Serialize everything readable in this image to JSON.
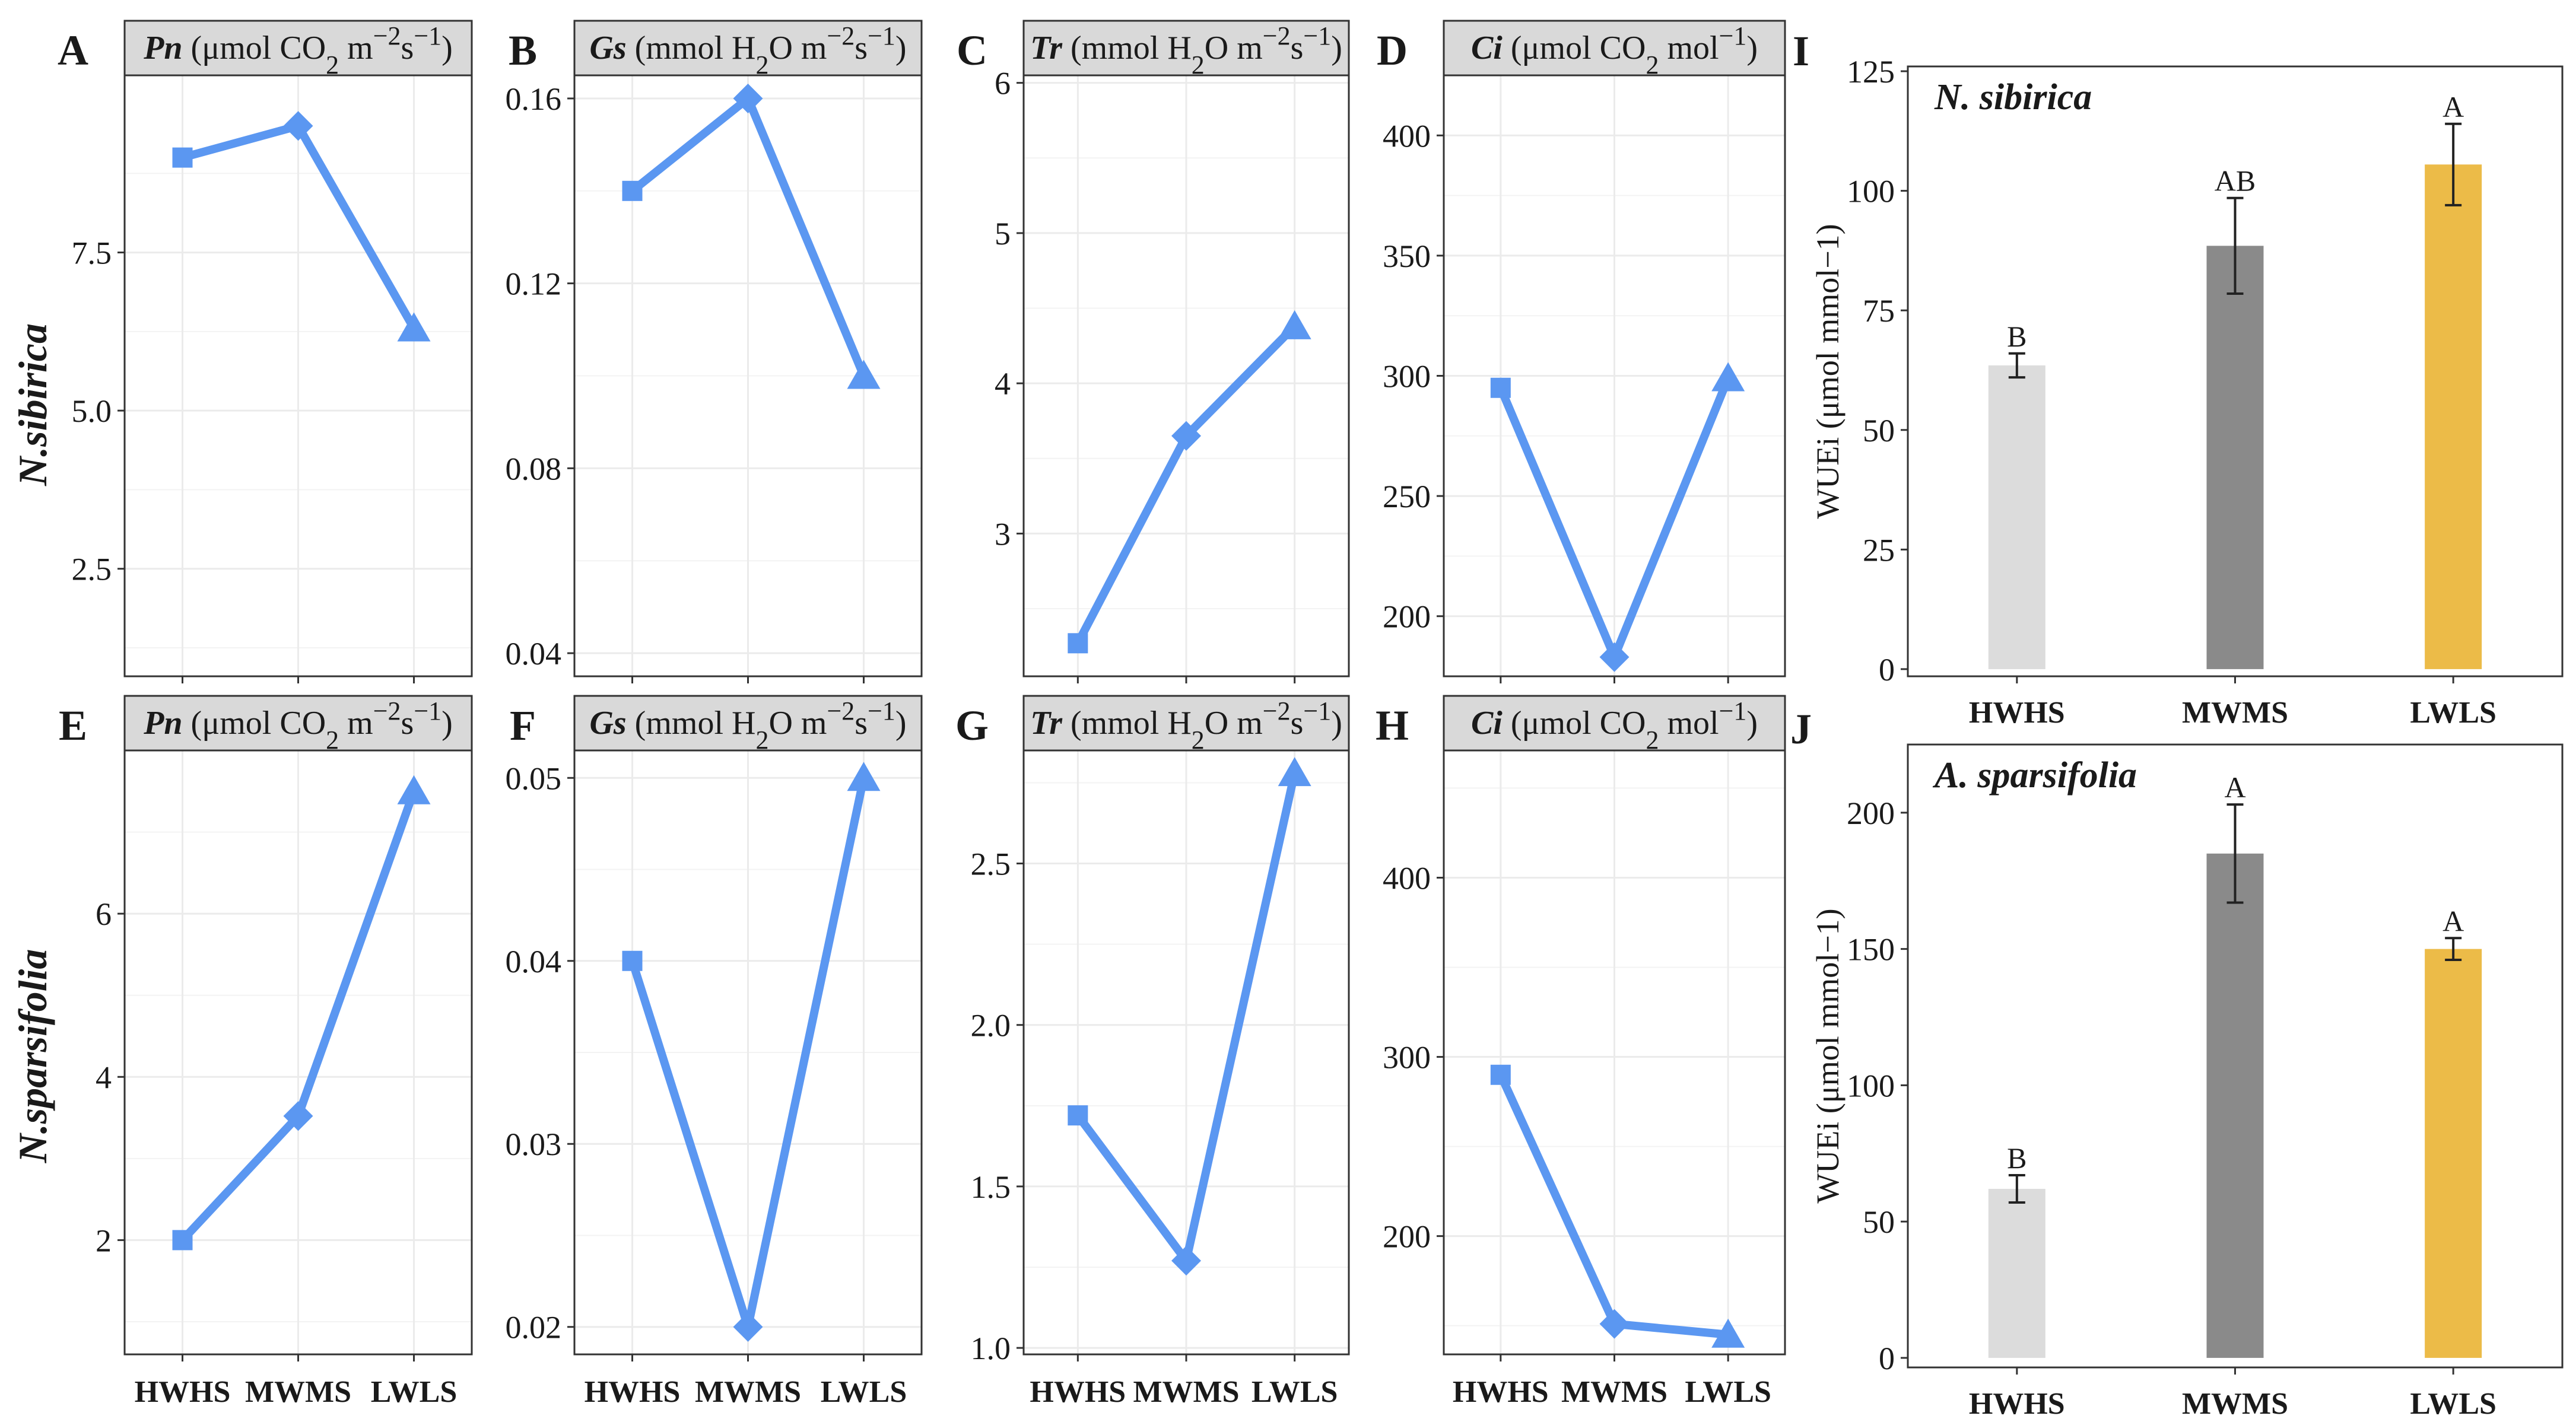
{
  "figure": {
    "row_labels": [
      "N.sibirica",
      "N.sparsifolia"
    ],
    "category_labels": [
      "HWHS",
      "MWMS",
      "LWLS"
    ]
  },
  "colors": {
    "line": "#5b97f1",
    "strip_bg": "#d9d9d9",
    "grid": "#ebebeb",
    "bar_HWHS": "#dcdcdc",
    "bar_MWMS": "#8a8a8a",
    "bar_LWLS": "#ecbb48"
  },
  "chart_data": [
    {
      "id": "A",
      "type": "line",
      "panel_label": "A",
      "strip": {
        "var": "Pn",
        "text": "(μmol CO",
        "sub": "2",
        "text2": " m",
        "sup": "−2",
        "text3": "s",
        "sup2": "−1",
        "text4": ")"
      },
      "categories": [
        "HWHS",
        "MWMS",
        "LWLS"
      ],
      "values": [
        9.0,
        9.5,
        6.3
      ],
      "markers": [
        "square",
        "diamond",
        "triangle"
      ],
      "ylim": [
        0.8,
        10.3
      ],
      "yticks": [
        2.5,
        5.0,
        7.5
      ],
      "ytick_labels": [
        "2.5",
        "5.0",
        "7.5"
      ],
      "show_x_labels": false
    },
    {
      "id": "B",
      "type": "line",
      "panel_label": "B",
      "strip": {
        "var": "Gs",
        "text": "(mmol H",
        "sub": "2",
        "text2": "O m",
        "sup": "−2",
        "text3": "s",
        "sup2": "−1",
        "text4": ")"
      },
      "categories": [
        "HWHS",
        "MWMS",
        "LWLS"
      ],
      "values": [
        0.14,
        0.16,
        0.1
      ],
      "markers": [
        "square",
        "diamond",
        "triangle"
      ],
      "ylim": [
        0.035,
        0.165
      ],
      "yticks": [
        0.04,
        0.08,
        0.12,
        0.16
      ],
      "ytick_labels": [
        "0.04",
        "0.08",
        "0.12",
        "0.16"
      ],
      "show_x_labels": false
    },
    {
      "id": "C",
      "type": "line",
      "panel_label": "C",
      "strip": {
        "var": "Tr",
        "text": "(mmol H",
        "sub": "2",
        "text2": "O m",
        "sup": "−2",
        "text3": "s",
        "sup2": "−1",
        "text4": ")"
      },
      "categories": [
        "HWHS",
        "MWMS",
        "LWLS"
      ],
      "values": [
        2.27,
        3.65,
        4.38
      ],
      "markers": [
        "square",
        "diamond",
        "triangle"
      ],
      "ylim": [
        2.05,
        6.05
      ],
      "yticks": [
        3,
        4,
        5,
        6
      ],
      "ytick_labels": [
        "3",
        "4",
        "5",
        "6"
      ],
      "show_x_labels": false
    },
    {
      "id": "D",
      "type": "line",
      "panel_label": "D",
      "strip": {
        "var": "Ci",
        "text": "(μmol CO",
        "sub": "2",
        "text2": " mol",
        "sup": "−1",
        "text3": "",
        "sup2": "",
        "text4": ")"
      },
      "categories": [
        "HWHS",
        "MWMS",
        "LWLS"
      ],
      "values": [
        295,
        183,
        299
      ],
      "markers": [
        "square",
        "diamond",
        "triangle"
      ],
      "ylim": [
        175,
        425
      ],
      "yticks": [
        200,
        250,
        300,
        350,
        400
      ],
      "ytick_labels": [
        "200",
        "250",
        "300",
        "350",
        "400"
      ],
      "show_x_labels": false
    },
    {
      "id": "E",
      "type": "line",
      "panel_label": "E",
      "strip": {
        "var": "Pn",
        "text": "(μmol CO",
        "sub": "2",
        "text2": " m",
        "sup": "−2",
        "text3": "s",
        "sup2": "−1",
        "text4": ")"
      },
      "categories": [
        "HWHS",
        "MWMS",
        "LWLS"
      ],
      "values": [
        2.0,
        3.52,
        7.5
      ],
      "markers": [
        "square",
        "diamond",
        "triangle"
      ],
      "ylim": [
        0.6,
        8.0
      ],
      "yticks": [
        2,
        4,
        6
      ],
      "ytick_labels": [
        "2",
        "4",
        "6"
      ],
      "show_x_labels": true
    },
    {
      "id": "F",
      "type": "line",
      "panel_label": "F",
      "strip": {
        "var": "Gs",
        "text": "(mmol H",
        "sub": "2",
        "text2": "O m",
        "sup": "−2",
        "text3": "s",
        "sup2": "−1",
        "text4": ")"
      },
      "categories": [
        "HWHS",
        "MWMS",
        "LWLS"
      ],
      "values": [
        0.04,
        0.02,
        0.05
      ],
      "markers": [
        "square",
        "diamond",
        "triangle"
      ],
      "ylim": [
        0.0185,
        0.0515
      ],
      "yticks": [
        0.02,
        0.03,
        0.04,
        0.05
      ],
      "ytick_labels": [
        "0.02",
        "0.03",
        "0.04",
        "0.05"
      ],
      "show_x_labels": true
    },
    {
      "id": "G",
      "type": "line",
      "panel_label": "G",
      "strip": {
        "var": "Tr",
        "text": "(mmol H",
        "sub": "2",
        "text2": "O m",
        "sup": "−2",
        "text3": "s",
        "sup2": "−1",
        "text4": ")"
      },
      "categories": [
        "HWHS",
        "MWMS",
        "LWLS"
      ],
      "values": [
        1.72,
        1.27,
        2.78
      ],
      "markers": [
        "square",
        "diamond",
        "triangle"
      ],
      "ylim": [
        0.98,
        2.85
      ],
      "yticks": [
        1.0,
        1.5,
        2.0,
        2.5
      ],
      "ytick_labels": [
        "1.0",
        "1.5",
        "2.0",
        "2.5"
      ],
      "show_x_labels": true
    },
    {
      "id": "H",
      "type": "line",
      "panel_label": "H",
      "strip": {
        "var": "Ci",
        "text": "(μmol CO",
        "sub": "2",
        "text2": " mol",
        "sup": "−1",
        "text3": "",
        "sup2": "",
        "text4": ")"
      },
      "categories": [
        "HWHS",
        "MWMS",
        "LWLS"
      ],
      "values": [
        290,
        151,
        145
      ],
      "markers": [
        "square",
        "diamond",
        "triangle"
      ],
      "ylim": [
        134,
        471
      ],
      "yticks": [
        200,
        300,
        400
      ],
      "ytick_labels": [
        "200",
        "300",
        "400"
      ],
      "show_x_labels": true
    },
    {
      "id": "I",
      "type": "bar",
      "panel_label": "I",
      "inset_title": "N. sibirica",
      "ylabel": "WUEi (μmol mmol−1)",
      "categories": [
        "HWHS",
        "MWMS",
        "LWLS"
      ],
      "values": [
        63.5,
        88.5,
        105.5
      ],
      "errors": [
        2.5,
        10.0,
        8.5
      ],
      "letters": [
        "B",
        "AB",
        "A"
      ],
      "ylim": [
        -1.5,
        126
      ],
      "yticks": [
        0,
        25,
        50,
        75,
        100,
        125
      ],
      "ytick_labels": [
        "0",
        "25",
        "50",
        "75",
        "100",
        "125"
      ]
    },
    {
      "id": "J",
      "type": "bar",
      "panel_label": "J",
      "inset_title": "A. sparsifolia",
      "ylabel": "WUEi (μmol mmol−1)",
      "categories": [
        "HWHS",
        "MWMS",
        "LWLS"
      ],
      "values": [
        62,
        185,
        150
      ],
      "errors": [
        5,
        18,
        4
      ],
      "letters": [
        "B",
        "A",
        "A"
      ],
      "ylim": [
        -3.5,
        225
      ],
      "yticks": [
        0,
        50,
        100,
        150,
        200
      ],
      "ytick_labels": [
        "0",
        "50",
        "100",
        "150",
        "200"
      ]
    }
  ]
}
